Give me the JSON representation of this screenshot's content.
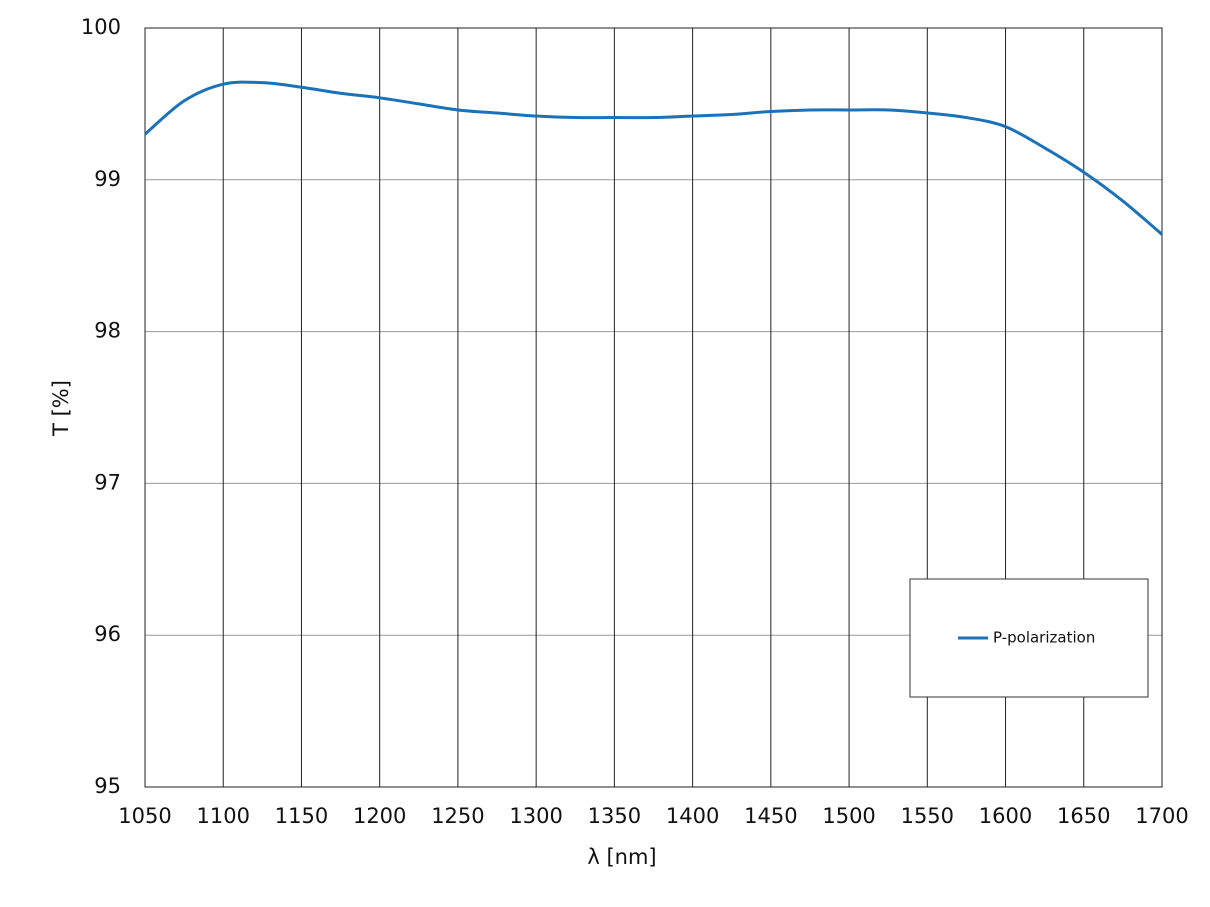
{
  "chart_data": {
    "type": "line",
    "xlabel": "λ [nm]",
    "ylabel": "T [%]",
    "x": [
      1050,
      1075,
      1100,
      1125,
      1150,
      1175,
      1200,
      1225,
      1250,
      1275,
      1300,
      1325,
      1350,
      1375,
      1400,
      1425,
      1450,
      1475,
      1500,
      1525,
      1550,
      1575,
      1600,
      1625,
      1650,
      1675,
      1700
    ],
    "series": [
      {
        "name": "P-polarization",
        "color": "#1b72b8",
        "values": [
          99.3,
          99.52,
          99.63,
          99.64,
          99.61,
          99.57,
          99.54,
          99.5,
          99.46,
          99.44,
          99.42,
          99.41,
          99.41,
          99.41,
          99.42,
          99.43,
          99.45,
          99.46,
          99.46,
          99.46,
          99.44,
          99.41,
          99.35,
          99.21,
          99.05,
          98.86,
          98.64
        ]
      }
    ],
    "xlim": [
      1050,
      1700
    ],
    "xticks": [
      1050,
      1100,
      1150,
      1200,
      1250,
      1300,
      1350,
      1400,
      1450,
      1500,
      1550,
      1600,
      1650,
      1700
    ],
    "ylim": [
      95,
      100
    ],
    "yticks": [
      95,
      96,
      97,
      98,
      99,
      100
    ],
    "grid": true,
    "legend": "lower-right"
  }
}
